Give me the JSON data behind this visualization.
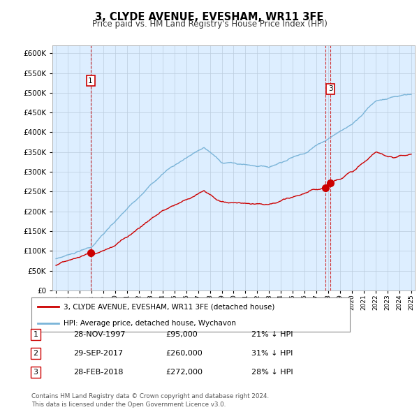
{
  "title": "3, CLYDE AVENUE, EVESHAM, WR11 3FE",
  "subtitle": "Price paid vs. HM Land Registry's House Price Index (HPI)",
  "legend_line1": "3, CLYDE AVENUE, EVESHAM, WR11 3FE (detached house)",
  "legend_line2": "HPI: Average price, detached house, Wychavon",
  "transactions": [
    {
      "num": 1,
      "date": "28-NOV-1997",
      "price": "£95,000",
      "hpi": "21% ↓ HPI",
      "year": 1997.92
    },
    {
      "num": 2,
      "date": "29-SEP-2017",
      "price": "£260,000",
      "hpi": "31% ↓ HPI",
      "year": 2017.75
    },
    {
      "num": 3,
      "date": "28-FEB-2018",
      "price": "£272,000",
      "hpi": "28% ↓ HPI",
      "year": 2018.17
    }
  ],
  "transaction_values": [
    95000,
    260000,
    272000
  ],
  "transaction_years": [
    1997.92,
    2017.75,
    2018.17
  ],
  "footer": "Contains HM Land Registry data © Crown copyright and database right 2024.\nThis data is licensed under the Open Government Licence v3.0.",
  "ylim": [
    0,
    620000
  ],
  "yticks": [
    0,
    50000,
    100000,
    150000,
    200000,
    250000,
    300000,
    350000,
    400000,
    450000,
    500000,
    550000,
    600000
  ],
  "hpi_color": "#7ab4d8",
  "price_color": "#cc0000",
  "dashed_color": "#cc0000",
  "bg_color": "#ffffff",
  "plot_bg": "#ddeeff",
  "grid_color": "#bbccdd"
}
